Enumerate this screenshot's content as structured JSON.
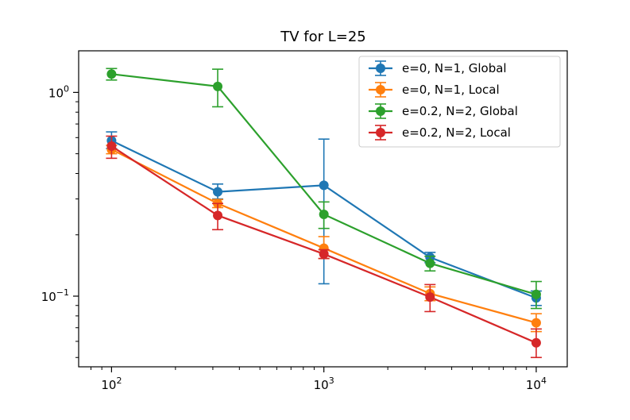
{
  "chart_data": {
    "type": "line",
    "title": "TV for L=25",
    "xlabel": "",
    "ylabel": "",
    "xscale": "log",
    "yscale": "log",
    "xlim": [
      70,
      14000
    ],
    "ylim": [
      0.045,
      1.6
    ],
    "grid": false,
    "legend_position": "top-right",
    "x": [
      100,
      316.2,
      1000,
      3162,
      10000
    ],
    "x_ticks": [
      {
        "value": 100,
        "base": "10",
        "exp": "2"
      },
      {
        "value": 1000,
        "base": "10",
        "exp": "3"
      },
      {
        "value": 10000,
        "base": "10",
        "exp": "4"
      }
    ],
    "y_ticks": [
      {
        "value": 1,
        "base": "10",
        "exp": "0"
      },
      {
        "value": 0.1,
        "base": "10",
        "exp": "−1"
      }
    ],
    "series": [
      {
        "name": "e=0, N=1, Global",
        "color": "#1f77b4",
        "values": [
          0.58,
          0.325,
          0.35,
          0.155,
          0.098
        ],
        "err_low": [
          0.53,
          0.3,
          0.115,
          0.146,
          0.09
        ],
        "err_high": [
          0.64,
          0.355,
          0.59,
          0.164,
          0.106
        ]
      },
      {
        "name": "e=0, N=1, Local",
        "color": "#ff7f0e",
        "values": [
          0.525,
          0.285,
          0.172,
          0.103,
          0.074
        ],
        "err_low": [
          0.5,
          0.272,
          0.153,
          0.095,
          0.067
        ],
        "err_high": [
          0.55,
          0.298,
          0.196,
          0.111,
          0.082
        ]
      },
      {
        "name": "e=0.2, N=2, Global",
        "color": "#2ca02c",
        "values": [
          1.23,
          1.07,
          0.252,
          0.145,
          0.102
        ],
        "err_low": [
          1.15,
          0.85,
          0.215,
          0.133,
          0.087
        ],
        "err_high": [
          1.31,
          1.3,
          0.29,
          0.157,
          0.118
        ]
      },
      {
        "name": "e=0.2, N=2, Local",
        "color": "#d62728",
        "values": [
          0.545,
          0.249,
          0.161,
          0.099,
          0.059
        ],
        "err_low": [
          0.475,
          0.212,
          0.153,
          0.084,
          0.05
        ],
        "err_high": [
          0.61,
          0.285,
          0.169,
          0.114,
          0.069
        ]
      }
    ]
  }
}
